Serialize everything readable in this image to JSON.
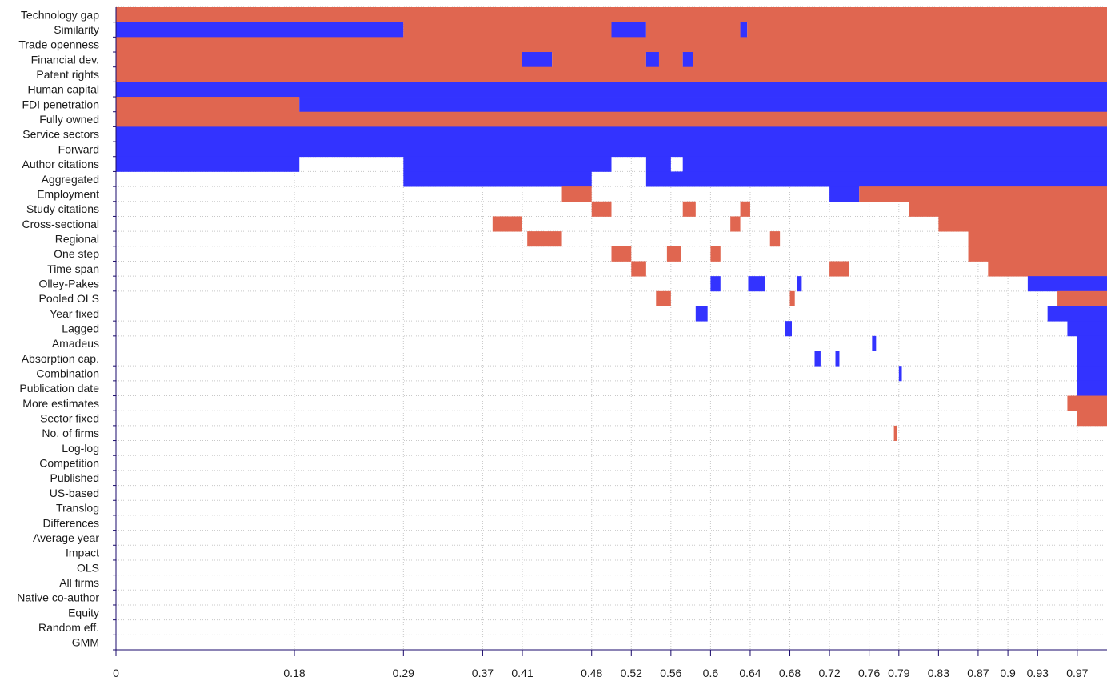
{
  "chart_data": {
    "type": "heatmap",
    "title": "",
    "xlabel": "",
    "ylabel": "",
    "xlim": [
      0,
      1
    ],
    "grid": true,
    "colors": {
      "positive": "#3333ff",
      "negative": "#e06650",
      "none": "#ffffff",
      "grid": "#c8c8c8",
      "axis": "#1a0a6b"
    },
    "x_tick_labels": [
      {
        "value": 0,
        "label": "0"
      },
      {
        "value": 0.18,
        "label": "0.18"
      },
      {
        "value": 0.29,
        "label": "0.29"
      },
      {
        "value": 0.37,
        "label": "0.37"
      },
      {
        "value": 0.41,
        "label": "0.41"
      },
      {
        "value": 0.48,
        "label": "0.48"
      },
      {
        "value": 0.52,
        "label": "0.52"
      },
      {
        "value": 0.56,
        "label": "0.56"
      },
      {
        "value": 0.6,
        "label": "0.6"
      },
      {
        "value": 0.64,
        "label": "0.64"
      },
      {
        "value": 0.68,
        "label": "0.68"
      },
      {
        "value": 0.72,
        "label": "0.72"
      },
      {
        "value": 0.76,
        "label": "0.76"
      },
      {
        "value": 0.79,
        "label": "0.79"
      },
      {
        "value": 0.83,
        "label": "0.83"
      },
      {
        "value": 0.87,
        "label": "0.87"
      },
      {
        "value": 0.9,
        "label": "0.9"
      },
      {
        "value": 0.93,
        "label": "0.93"
      },
      {
        "value": 0.97,
        "label": "0.97"
      }
    ],
    "variables": [
      "Technology gap",
      "Similarity",
      "Trade openness",
      "Financial dev.",
      "Patent rights",
      "Human capital",
      "FDI penetration",
      "Fully owned",
      "Service sectors",
      "Forward",
      "Author citations",
      "Aggregated",
      "Employment",
      "Study citations",
      "Cross-sectional",
      "Regional",
      "One step",
      "Time span",
      "Olley-Pakes",
      "Pooled OLS",
      "Year fixed",
      "Lagged",
      "Amadeus",
      "Absorption cap.",
      "Combination",
      "Publication date",
      "More estimates",
      "Sector fixed",
      "No. of firms",
      "Log-log",
      "Competition",
      "Published",
      "US-based",
      "Translog",
      "Differences",
      "Average year",
      "Impact",
      "OLS",
      "All firms",
      "Native co-author",
      "Equity",
      "Random eff.",
      "GMM"
    ],
    "cells": [
      {
        "row": "Technology gap",
        "sign": "negative",
        "x": [
          0,
          1
        ]
      },
      {
        "row": "Similarity",
        "sign": "positive",
        "x": [
          0,
          0.29
        ]
      },
      {
        "row": "Similarity",
        "sign": "negative",
        "x": [
          0.29,
          0.5
        ]
      },
      {
        "row": "Similarity",
        "sign": "positive",
        "x": [
          0.5,
          0.535
        ]
      },
      {
        "row": "Similarity",
        "sign": "negative",
        "x": [
          0.535,
          0.63
        ]
      },
      {
        "row": "Similarity",
        "sign": "positive",
        "x": [
          0.63,
          0.637
        ]
      },
      {
        "row": "Similarity",
        "sign": "negative",
        "x": [
          0.637,
          1
        ]
      },
      {
        "row": "Trade openness",
        "sign": "negative",
        "x": [
          0,
          1
        ]
      },
      {
        "row": "Financial dev.",
        "sign": "negative",
        "x": [
          0,
          0.41
        ]
      },
      {
        "row": "Financial dev.",
        "sign": "positive",
        "x": [
          0.41,
          0.44
        ]
      },
      {
        "row": "Financial dev.",
        "sign": "negative",
        "x": [
          0.44,
          0.535
        ]
      },
      {
        "row": "Financial dev.",
        "sign": "positive",
        "x": [
          0.535,
          0.548
        ]
      },
      {
        "row": "Financial dev.",
        "sign": "negative",
        "x": [
          0.548,
          0.572
        ]
      },
      {
        "row": "Financial dev.",
        "sign": "positive",
        "x": [
          0.572,
          0.582
        ]
      },
      {
        "row": "Financial dev.",
        "sign": "negative",
        "x": [
          0.582,
          1
        ]
      },
      {
        "row": "Patent rights",
        "sign": "negative",
        "x": [
          0,
          1
        ]
      },
      {
        "row": "Human capital",
        "sign": "positive",
        "x": [
          0,
          1
        ]
      },
      {
        "row": "FDI penetration",
        "sign": "negative",
        "x": [
          0,
          0.185
        ]
      },
      {
        "row": "FDI penetration",
        "sign": "positive",
        "x": [
          0.185,
          1
        ]
      },
      {
        "row": "Fully owned",
        "sign": "negative",
        "x": [
          0,
          1
        ]
      },
      {
        "row": "Service sectors",
        "sign": "positive",
        "x": [
          0,
          1
        ]
      },
      {
        "row": "Forward",
        "sign": "positive",
        "x": [
          0,
          1
        ]
      },
      {
        "row": "Author citations",
        "sign": "positive",
        "x": [
          0,
          0.185
        ]
      },
      {
        "row": "Author citations",
        "sign": "positive",
        "x": [
          0.29,
          0.5
        ]
      },
      {
        "row": "Author citations",
        "sign": "positive",
        "x": [
          0.535,
          0.56
        ]
      },
      {
        "row": "Author citations",
        "sign": "positive",
        "x": [
          0.572,
          1
        ]
      },
      {
        "row": "Aggregated",
        "sign": "positive",
        "x": [
          0.29,
          0.48
        ]
      },
      {
        "row": "Aggregated",
        "sign": "positive",
        "x": [
          0.535,
          1
        ]
      },
      {
        "row": "Employment",
        "sign": "negative",
        "x": [
          0.45,
          0.48
        ]
      },
      {
        "row": "Employment",
        "sign": "positive",
        "x": [
          0.72,
          0.75
        ]
      },
      {
        "row": "Employment",
        "sign": "negative",
        "x": [
          0.75,
          1
        ]
      },
      {
        "row": "Study citations",
        "sign": "negative",
        "x": [
          0.48,
          0.5
        ]
      },
      {
        "row": "Study citations",
        "sign": "negative",
        "x": [
          0.572,
          0.585
        ]
      },
      {
        "row": "Study citations",
        "sign": "negative",
        "x": [
          0.63,
          0.64
        ]
      },
      {
        "row": "Study citations",
        "sign": "negative",
        "x": [
          0.8,
          1
        ]
      },
      {
        "row": "Cross-sectional",
        "sign": "negative",
        "x": [
          0.38,
          0.41
        ]
      },
      {
        "row": "Cross-sectional",
        "sign": "negative",
        "x": [
          0.62,
          0.63
        ]
      },
      {
        "row": "Cross-sectional",
        "sign": "negative",
        "x": [
          0.83,
          1
        ]
      },
      {
        "row": "Regional",
        "sign": "negative",
        "x": [
          0.415,
          0.45
        ]
      },
      {
        "row": "Regional",
        "sign": "negative",
        "x": [
          0.66,
          0.67
        ]
      },
      {
        "row": "Regional",
        "sign": "negative",
        "x": [
          0.86,
          1
        ]
      },
      {
        "row": "One step",
        "sign": "negative",
        "x": [
          0.5,
          0.52
        ]
      },
      {
        "row": "One step",
        "sign": "negative",
        "x": [
          0.556,
          0.57
        ]
      },
      {
        "row": "One step",
        "sign": "negative",
        "x": [
          0.6,
          0.61
        ]
      },
      {
        "row": "One step",
        "sign": "negative",
        "x": [
          0.86,
          1
        ]
      },
      {
        "row": "Time span",
        "sign": "negative",
        "x": [
          0.52,
          0.535
        ]
      },
      {
        "row": "Time span",
        "sign": "negative",
        "x": [
          0.72,
          0.74
        ]
      },
      {
        "row": "Time span",
        "sign": "negative",
        "x": [
          0.88,
          1
        ]
      },
      {
        "row": "Olley-Pakes",
        "sign": "positive",
        "x": [
          0.6,
          0.61
        ]
      },
      {
        "row": "Olley-Pakes",
        "sign": "positive",
        "x": [
          0.638,
          0.655
        ]
      },
      {
        "row": "Olley-Pakes",
        "sign": "positive",
        "x": [
          0.687,
          0.692
        ]
      },
      {
        "row": "Olley-Pakes",
        "sign": "positive",
        "x": [
          0.92,
          1
        ]
      },
      {
        "row": "Pooled OLS",
        "sign": "negative",
        "x": [
          0.545,
          0.56
        ]
      },
      {
        "row": "Pooled OLS",
        "sign": "negative",
        "x": [
          0.68,
          0.685
        ]
      },
      {
        "row": "Pooled OLS",
        "sign": "negative",
        "x": [
          0.95,
          1
        ]
      },
      {
        "row": "Year fixed",
        "sign": "positive",
        "x": [
          0.585,
          0.597
        ]
      },
      {
        "row": "Year fixed",
        "sign": "positive",
        "x": [
          0.94,
          1
        ]
      },
      {
        "row": "Lagged",
        "sign": "positive",
        "x": [
          0.675,
          0.682
        ]
      },
      {
        "row": "Lagged",
        "sign": "positive",
        "x": [
          0.96,
          1
        ]
      },
      {
        "row": "Amadeus",
        "sign": "positive",
        "x": [
          0.763,
          0.767
        ]
      },
      {
        "row": "Amadeus",
        "sign": "positive",
        "x": [
          0.97,
          1
        ]
      },
      {
        "row": "Absorption cap.",
        "sign": "positive",
        "x": [
          0.705,
          0.711
        ]
      },
      {
        "row": "Absorption cap.",
        "sign": "positive",
        "x": [
          0.726,
          0.73
        ]
      },
      {
        "row": "Absorption cap.",
        "sign": "positive",
        "x": [
          0.97,
          1
        ]
      },
      {
        "row": "Combination",
        "sign": "positive",
        "x": [
          0.79,
          0.793
        ]
      },
      {
        "row": "Combination",
        "sign": "positive",
        "x": [
          0.97,
          1
        ]
      },
      {
        "row": "Publication date",
        "sign": "positive",
        "x": [
          0.97,
          1
        ]
      },
      {
        "row": "More estimates",
        "sign": "negative",
        "x": [
          0.96,
          1
        ]
      },
      {
        "row": "Sector fixed",
        "sign": "negative",
        "x": [
          0.97,
          1
        ]
      },
      {
        "row": "No. of firms",
        "sign": "negative",
        "x": [
          0.785,
          0.788
        ]
      }
    ]
  }
}
